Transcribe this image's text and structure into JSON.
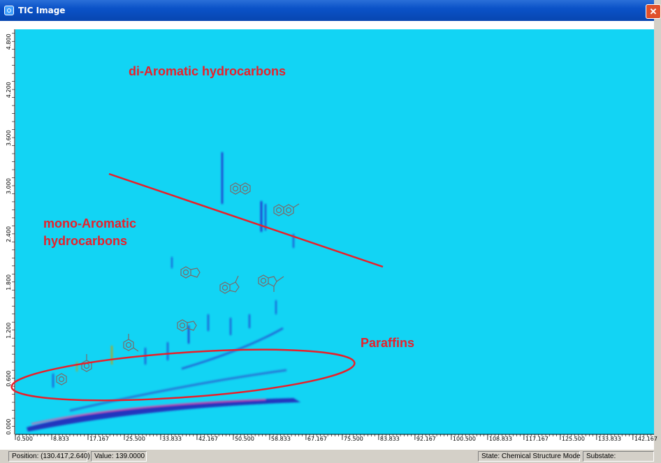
{
  "window": {
    "title": "TIC Image",
    "close_glyph": "✕",
    "icon": "app-icon"
  },
  "annotations": {
    "di_aromatic": "di-Aromatic hydrocarbons",
    "mono_aromatic_line1": "mono-Aromatic",
    "mono_aromatic_line2": "hydrocarbons",
    "paraffins": "Paraffins"
  },
  "chart_data": {
    "type": "heatmap",
    "x_ticks": [
      "0.500",
      "8.833",
      "17.167",
      "25.500",
      "33.833",
      "42.167",
      "50.500",
      "58.833",
      "67.167",
      "75.500",
      "83.833",
      "92.167",
      "100.500",
      "108.833",
      "117.167",
      "125.500",
      "133.833",
      "142.167"
    ],
    "y_ticks": [
      "0.000",
      "0.600",
      "1.200",
      "1.800",
      "2.400",
      "3.000",
      "3.600",
      "4.200",
      "4.800"
    ],
    "xlim": [
      0.5,
      147
    ],
    "ylim": [
      -0.1,
      4.95
    ],
    "colors": {
      "background": "#12d4f4",
      "peak": "#2020c0",
      "peak_core": "#ff40a0",
      "annotation": "#e8202a"
    }
  },
  "status": {
    "position": "Position: (130.417,2.640)",
    "value": "Value: 139.0000",
    "state": "State: Chemical Structure Mode",
    "substate": "Substate:"
  }
}
